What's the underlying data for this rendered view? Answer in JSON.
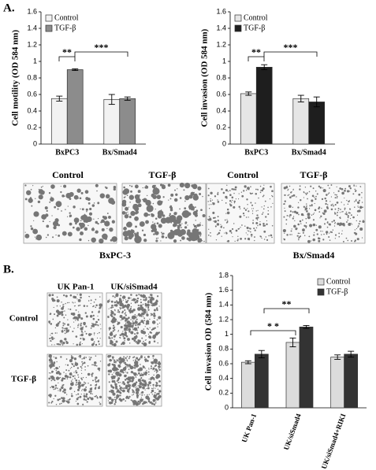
{
  "panel_labels": [
    "A.",
    "B."
  ],
  "chart_data": [
    {
      "type": "bar",
      "y_label": "Cell motility (OD 584 nm)",
      "categories": [
        "BxPC3",
        "Bx/Smad4"
      ],
      "series": [
        {
          "name": "Control",
          "color": "#f2f2f2",
          "values": [
            0.55,
            0.54
          ],
          "errors": [
            0.03,
            0.06
          ]
        },
        {
          "name": "TGF-β",
          "color": "#8c8c8c",
          "values": [
            0.9,
            0.55
          ],
          "errors": [
            0.01,
            0.02
          ]
        }
      ],
      "ylim": [
        0,
        1.6
      ],
      "yticks": [
        0,
        0.2,
        0.4,
        0.6,
        0.8,
        1,
        1.2,
        1.4,
        1.6
      ],
      "legend": "upper left",
      "annotations": [
        "**",
        "***"
      ]
    },
    {
      "type": "bar",
      "y_label": "Cell invasion (OD 584 nm)",
      "categories": [
        "BxPC3",
        "Bx/Smad4"
      ],
      "series": [
        {
          "name": "Control",
          "color": "#e6e6e6",
          "values": [
            0.61,
            0.55
          ],
          "errors": [
            0.02,
            0.04
          ]
        },
        {
          "name": "TGF-β",
          "color": "#1e1e1e",
          "values": [
            0.93,
            0.51
          ],
          "errors": [
            0.03,
            0.06
          ]
        }
      ],
      "ylim": [
        0,
        1.6
      ],
      "yticks": [
        0,
        0.2,
        0.4,
        0.6,
        0.8,
        1,
        1.2,
        1.4,
        1.6
      ],
      "legend": "upper left",
      "annotations": [
        "**",
        "***"
      ]
    },
    {
      "type": "bar",
      "y_label": "Cell invasion OD (584 nm)",
      "categories": [
        "UK Pan-1",
        "UK/siSmad4",
        "UK/siSmad4+RIKI"
      ],
      "series": [
        {
          "name": "Control",
          "color": "#dcdcdc",
          "values": [
            0.62,
            0.89,
            0.69
          ],
          "errors": [
            0.02,
            0.06,
            0.03
          ]
        },
        {
          "name": "TGF-β",
          "color": "#333333",
          "values": [
            0.73,
            1.1,
            0.73
          ],
          "errors": [
            0.05,
            0.02,
            0.04
          ]
        }
      ],
      "ylim": [
        0,
        1.8
      ],
      "yticks": [
        0,
        0.2,
        0.4,
        0.6,
        0.8,
        1,
        1.2,
        1.4,
        1.6,
        1.8
      ],
      "legend": "upper right",
      "annotations": [
        "* *",
        "**"
      ]
    }
  ],
  "images_a": [
    {
      "columns": [
        "Control",
        "TGF-β"
      ],
      "caption": "BxPC-3"
    },
    {
      "columns": [
        "Control",
        "TGF-β"
      ],
      "caption": "Bx/Smad4"
    }
  ],
  "images_b": {
    "columns": [
      "UK Pan-1",
      "UK/siSmad4"
    ],
    "rows": [
      "Control",
      "TGF-β"
    ]
  }
}
